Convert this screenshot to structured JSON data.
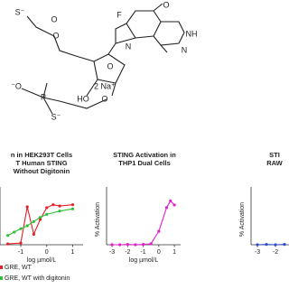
{
  "structure": {
    "labels": [
      "F",
      "O",
      "NH",
      "N",
      "N",
      "O",
      "O",
      "S⁻",
      "O",
      "HO",
      "O",
      "⁻O",
      "P",
      "S⁻"
    ],
    "counterion": "2 Na⁺"
  },
  "chart_data": [
    {
      "type": "line",
      "title_lines": [
        "n in HEK293T Cells",
        "T Human STING",
        "Without Digitonin"
      ],
      "x_label": "log µmol/L",
      "xlim": [
        -1.8,
        1.4
      ],
      "xticks": [
        -1,
        0,
        1
      ],
      "ylim": [
        0,
        120
      ],
      "series": [
        {
          "name": "GRE, WT",
          "color": "#e41f26",
          "x": [
            -1.5,
            -1,
            -0.75,
            -0.5,
            -0.25,
            0,
            0.25,
            0.5,
            1
          ],
          "values": [
            2,
            4,
            90,
            25,
            60,
            88,
            95,
            92,
            95
          ]
        },
        {
          "name": "GRE, WT with digitonin",
          "color": "#2fbf3a",
          "x": [
            -1.5,
            -1.25,
            -1,
            -0.75,
            -0.5,
            -0.25,
            0,
            0.5,
            1
          ],
          "values": [
            22,
            30,
            38,
            45,
            55,
            65,
            72,
            80,
            85
          ]
        }
      ]
    },
    {
      "type": "line",
      "title_lines": [
        "STING Activation in",
        "THP1 Dual Cells"
      ],
      "x_label": "log µmol/L",
      "y_label": "% Activation",
      "xlim": [
        -3.35,
        1.4
      ],
      "xticks": [
        -3,
        -2,
        -1,
        0,
        1
      ],
      "ylim": [
        0,
        150
      ],
      "series": [
        {
          "name": null,
          "color": "#e020c8",
          "x": [
            -3,
            -2.5,
            -2,
            -1.5,
            -1,
            -0.5,
            0,
            0.5,
            0.75,
            1
          ],
          "values": [
            0,
            0,
            1,
            0,
            1,
            3,
            40,
            110,
            130,
            118
          ]
        }
      ]
    },
    {
      "type": "line",
      "title_lines": [
        "STI",
        "RAW"
      ],
      "y_label": "% Activation",
      "xlim": [
        -3.35,
        -1.25
      ],
      "xticks": [
        -3,
        -2
      ],
      "ylim": [
        0,
        150
      ],
      "series": [
        {
          "name": null,
          "color": "#2f4fd0",
          "x": [
            -3,
            -2.5,
            -2,
            -1.5
          ],
          "values": [
            0,
            1,
            0,
            1
          ]
        }
      ]
    }
  ]
}
